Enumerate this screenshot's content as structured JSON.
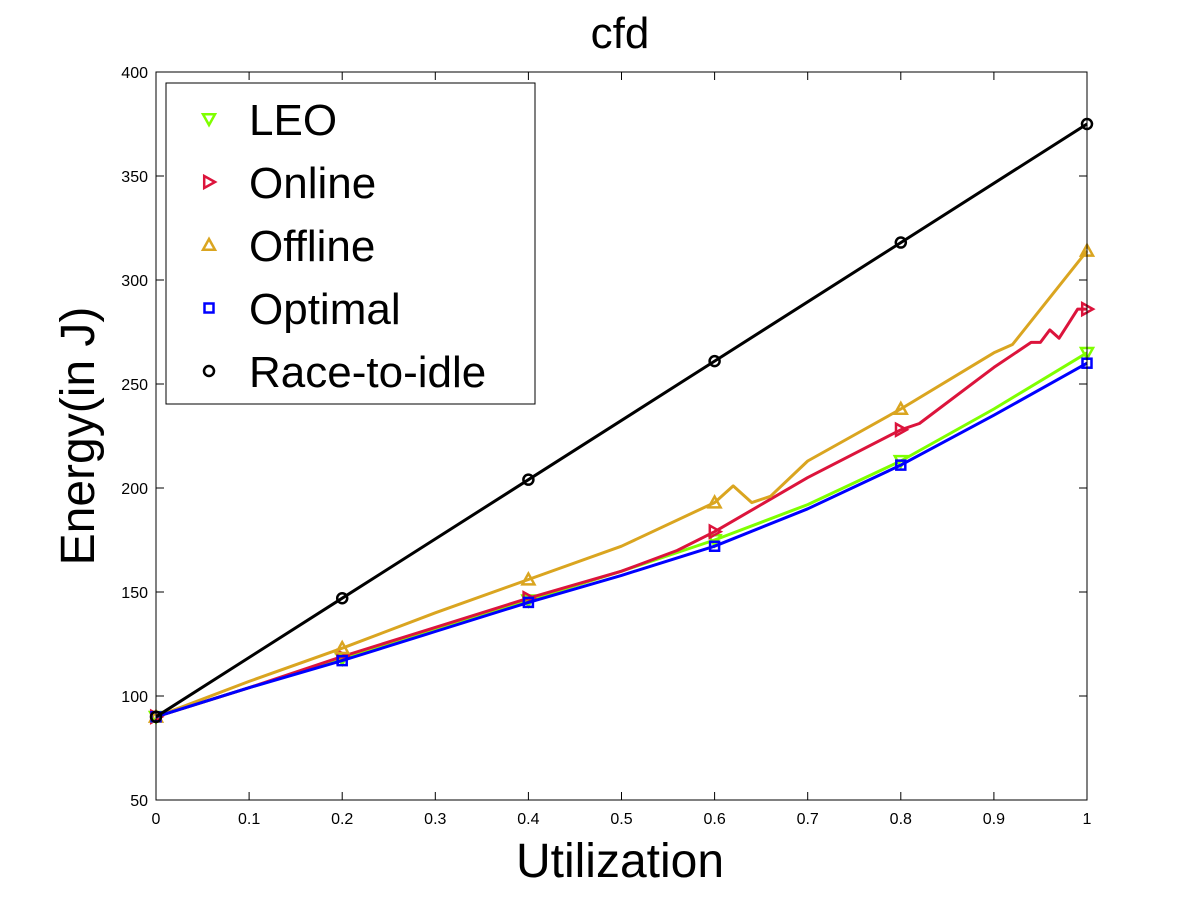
{
  "chart_data": {
    "type": "line",
    "title": "cfd",
    "xlabel": "Utilization",
    "ylabel": "Energy(in J)",
    "xlim": [
      0,
      1
    ],
    "ylim": [
      50,
      400
    ],
    "xticks": [
      "0",
      "0.1",
      "0.2",
      "0.3",
      "0.4",
      "0.5",
      "0.6",
      "0.7",
      "0.8",
      "0.9",
      "1"
    ],
    "yticks": [
      "50",
      "100",
      "150",
      "200",
      "250",
      "300",
      "350",
      "400"
    ],
    "legend_position": "top-left",
    "grid": false,
    "series": [
      {
        "name": "LEO",
        "color": "#7fff00",
        "marker": "triangle-down",
        "x": [
          0,
          0.1,
          0.2,
          0.3,
          0.4,
          0.5,
          0.6,
          0.7,
          0.8,
          0.9,
          1.0
        ],
        "y": [
          90,
          104,
          118,
          132,
          146,
          160,
          175,
          192,
          213,
          238,
          265
        ],
        "markers_x": [
          0,
          0.2,
          0.4,
          0.6,
          0.8,
          1.0
        ],
        "markers_y": [
          90,
          118,
          146,
          175,
          213,
          265
        ]
      },
      {
        "name": "Online",
        "color": "#dc143c",
        "marker": "triangle-right",
        "x": [
          0,
          0.1,
          0.2,
          0.3,
          0.4,
          0.5,
          0.56,
          0.6,
          0.7,
          0.8,
          0.82,
          0.9,
          0.94,
          0.95,
          0.96,
          0.97,
          0.98,
          0.99,
          1.0
        ],
        "y": [
          90,
          104,
          119,
          133,
          147,
          160,
          170,
          179,
          205,
          228,
          231,
          258,
          270,
          270,
          276,
          272,
          279,
          286,
          286
        ],
        "markers_x": [
          0,
          0.2,
          0.4,
          0.6,
          0.8,
          1.0
        ],
        "markers_y": [
          90,
          119,
          147,
          179,
          228,
          286
        ]
      },
      {
        "name": "Offline",
        "color": "#daa520",
        "marker": "triangle-up",
        "x": [
          0,
          0.1,
          0.2,
          0.3,
          0.4,
          0.5,
          0.6,
          0.62,
          0.64,
          0.66,
          0.7,
          0.8,
          0.9,
          0.92,
          1.0
        ],
        "y": [
          90,
          107,
          123,
          140,
          156,
          172,
          193,
          201,
          193,
          196,
          213,
          238,
          265,
          269,
          314
        ],
        "markers_x": [
          0,
          0.2,
          0.4,
          0.6,
          0.8,
          1.0
        ],
        "markers_y": [
          90,
          123,
          156,
          193,
          238,
          314
        ]
      },
      {
        "name": "Optimal",
        "color": "#0000ff",
        "marker": "square",
        "x": [
          0,
          0.1,
          0.2,
          0.3,
          0.4,
          0.5,
          0.6,
          0.7,
          0.8,
          0.9,
          1.0
        ],
        "y": [
          90,
          104,
          117,
          131,
          145,
          158,
          172,
          190,
          211,
          235,
          260
        ],
        "markers_x": [
          0,
          0.2,
          0.4,
          0.6,
          0.8,
          1.0
        ],
        "markers_y": [
          90,
          117,
          145,
          172,
          211,
          260
        ]
      },
      {
        "name": "Race-to-idle",
        "color": "#000000",
        "marker": "circle",
        "x": [
          0,
          0.2,
          0.4,
          0.6,
          0.8,
          1.0
        ],
        "y": [
          90,
          147,
          204,
          261,
          318,
          375
        ],
        "markers_x": [
          0,
          0.2,
          0.4,
          0.6,
          0.8,
          1.0
        ],
        "markers_y": [
          90,
          147,
          204,
          261,
          318,
          375
        ]
      }
    ]
  }
}
